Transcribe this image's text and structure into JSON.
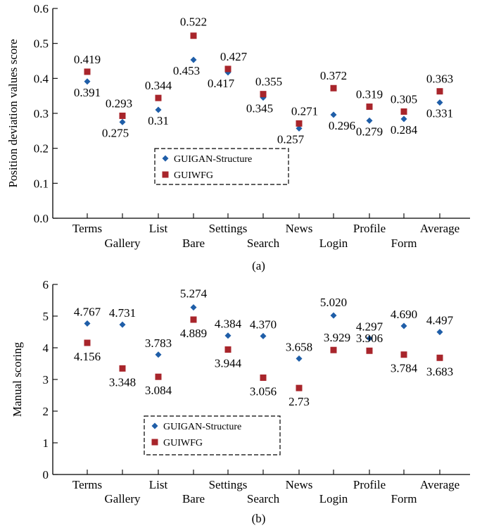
{
  "colors": {
    "series1": "#1f5ea8",
    "series2": "#a8252b"
  },
  "chart_data": [
    {
      "type": "scatter",
      "caption": "(a)",
      "ylabel": "Position deviation values score",
      "ylim": [
        0,
        0.6
      ],
      "yticks": [
        "0.0",
        "0.1",
        "0.2",
        "0.3",
        "0.4",
        "0.5",
        "0.6"
      ],
      "categories": [
        "Terms",
        "Gallery",
        "List",
        "Bare",
        "Settings",
        "Search",
        "News",
        "Login",
        "Profile",
        "Form",
        "Average"
      ],
      "series": [
        {
          "name": "GUIGAN-Structure",
          "marker": "diamond",
          "values": [
            0.391,
            0.275,
            0.31,
            0.453,
            0.417,
            0.345,
            0.257,
            0.296,
            0.279,
            0.284,
            0.331
          ],
          "labels": [
            "0.391",
            "0.275",
            "0.31",
            "0.453",
            "0.417",
            "0.345",
            "0.257",
            "0.296",
            "0.279",
            "0.284",
            "0.331"
          ]
        },
        {
          "name": "GUIWFG",
          "marker": "square",
          "values": [
            0.419,
            0.293,
            0.344,
            0.522,
            0.427,
            0.355,
            0.271,
            0.372,
            0.319,
            0.305,
            0.363
          ],
          "labels": [
            "0.419",
            "0.293",
            "0.344",
            "0.522",
            "0.427",
            "0.355",
            "0.271",
            "0.372",
            "0.319",
            "0.305",
            "0.363"
          ]
        }
      ],
      "legend": "center-bottom",
      "grid": false
    },
    {
      "type": "scatter",
      "caption": "(b)",
      "ylabel": "Manual scoring",
      "ylim": [
        0,
        6
      ],
      "yticks": [
        "0",
        "1",
        "2",
        "3",
        "4",
        "5",
        "6"
      ],
      "categories": [
        "Terms",
        "Gallery",
        "List",
        "Bare",
        "Settings",
        "Search",
        "News",
        "Login",
        "Profile",
        "Form",
        "Average"
      ],
      "series": [
        {
          "name": "GUIGAN-Structure",
          "marker": "diamond",
          "values": [
            4.767,
            4.731,
            3.783,
            5.274,
            4.384,
            4.37,
            3.658,
            5.02,
            4.297,
            4.69,
            4.497
          ],
          "labels": [
            "4.767",
            "4.731",
            "3.783",
            "5.274",
            "4.384",
            "4.370",
            "3.658",
            "5.020",
            "4.297",
            "4.690",
            "4.497"
          ]
        },
        {
          "name": "GUIWFG",
          "marker": "square",
          "values": [
            4.156,
            3.348,
            3.084,
            4.889,
            3.944,
            3.056,
            2.73,
            3.929,
            3.906,
            3.784,
            3.683
          ],
          "labels": [
            "4.156",
            "3.348",
            "3.084",
            "4.889",
            "3.944",
            "3.056",
            "2.73",
            "3.929",
            "3.906",
            "3.784",
            "3.683"
          ]
        }
      ],
      "legend": "center-bottom",
      "grid": false
    }
  ]
}
